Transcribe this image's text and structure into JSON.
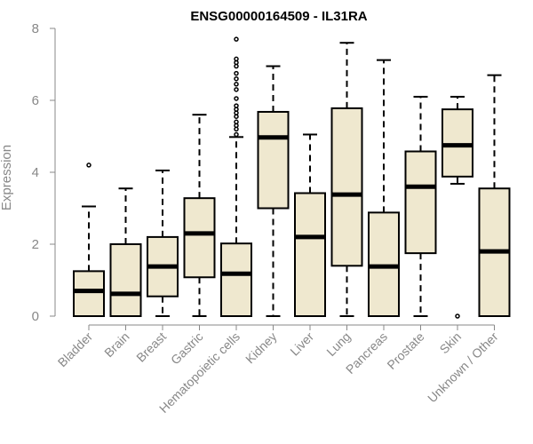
{
  "chart_data": {
    "type": "box",
    "title": "ENSG00000164509 - IL31RA",
    "xlabel": "",
    "ylabel": "Expression",
    "ylim": [
      0,
      8
    ],
    "yticks": [
      0,
      2,
      4,
      6,
      8
    ],
    "box_color": "#efe8cf",
    "categories": [
      "Bladder",
      "Brain",
      "Breast",
      "Gastric",
      "Hematopoietic cells",
      "Kidney",
      "Liver",
      "Lung",
      "Pancreas",
      "Prostate",
      "Skin",
      "Unknown / Other"
    ],
    "boxes": [
      {
        "min": 0,
        "q1": 0,
        "median": 0.7,
        "q3": 1.25,
        "max": 3.05,
        "outliers": [
          4.2
        ]
      },
      {
        "min": 0,
        "q1": 0,
        "median": 0.62,
        "q3": 2.0,
        "max": 3.55,
        "outliers": []
      },
      {
        "min": 0,
        "q1": 0.55,
        "median": 1.38,
        "q3": 2.2,
        "max": 4.05,
        "outliers": []
      },
      {
        "min": 0,
        "q1": 1.08,
        "median": 2.3,
        "q3": 3.28,
        "max": 5.6,
        "outliers": []
      },
      {
        "min": 0,
        "q1": 0,
        "median": 1.18,
        "q3": 2.02,
        "max": 4.98,
        "outliers": [
          5.05,
          5.2,
          5.3,
          5.4,
          5.55,
          5.65,
          5.75,
          5.85,
          6.05,
          6.3,
          6.45,
          6.6,
          6.75,
          6.95,
          7.05,
          7.15,
          7.7
        ]
      },
      {
        "min": 0,
        "q1": 3.0,
        "median": 4.97,
        "q3": 5.68,
        "max": 6.95,
        "outliers": []
      },
      {
        "min": 0,
        "q1": 0,
        "median": 2.2,
        "q3": 3.42,
        "max": 5.05,
        "outliers": []
      },
      {
        "min": 0,
        "q1": 1.4,
        "median": 3.38,
        "q3": 5.78,
        "max": 7.6,
        "outliers": []
      },
      {
        "min": 0,
        "q1": 0,
        "median": 1.38,
        "q3": 2.88,
        "max": 7.12,
        "outliers": []
      },
      {
        "min": 0,
        "q1": 1.75,
        "median": 3.6,
        "q3": 4.58,
        "max": 6.1,
        "outliers": []
      },
      {
        "min": 3.68,
        "q1": 3.88,
        "median": 4.75,
        "q3": 5.75,
        "max": 6.1,
        "outliers": [
          0
        ]
      },
      {
        "min": 0,
        "q1": 0,
        "median": 1.8,
        "q3": 3.55,
        "max": 6.7,
        "outliers": []
      }
    ]
  }
}
